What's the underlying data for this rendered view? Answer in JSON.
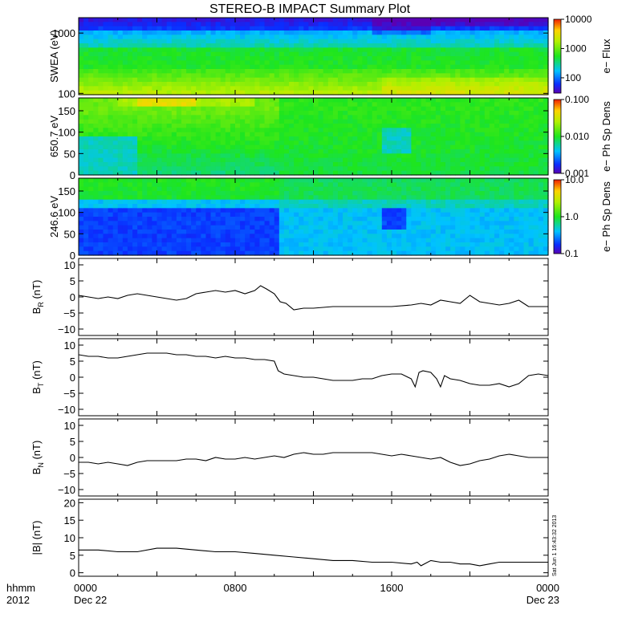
{
  "title": "STEREO-B IMPACT Summary Plot",
  "x_axis": {
    "ticks": [
      {
        "t": 0,
        "line1": "0000",
        "line2": "Dec 22"
      },
      {
        "t": 8,
        "line1": "0800",
        "line2": ""
      },
      {
        "t": 16,
        "line1": "1600",
        "line2": ""
      },
      {
        "t": 24,
        "line1": "0000",
        "line2": "Dec 23"
      }
    ],
    "corner_line1": "hhmm",
    "corner_line2": "2012"
  },
  "timestamp": "Sat Jun 1 16:43:32 2013",
  "colors": {
    "line": "#000000",
    "frame": "#000000"
  },
  "chart_data": [
    {
      "type": "heatmap",
      "id": "swea",
      "ylabel": "SWEA (eV)",
      "ylog": true,
      "ylim": [
        95,
        1800
      ],
      "y_ticks": [
        {
          "v": 100,
          "label": "100"
        },
        {
          "v": 1000,
          "label": "1000"
        }
      ],
      "colorbar": {
        "label": "e− Flux",
        "log": true,
        "range": [
          30,
          10000
        ],
        "ticks": [
          {
            "v": 10000,
            "label": "10000"
          },
          {
            "v": 1000,
            "label": "1000"
          },
          {
            "v": 100,
            "label": "100"
          }
        ]
      }
    },
    {
      "type": "heatmap",
      "id": "pad650",
      "ylabel": "650.7 eV",
      "ylim": [
        0,
        180
      ],
      "y_ticks": [
        {
          "v": 0,
          "label": "0"
        },
        {
          "v": 50,
          "label": "50"
        },
        {
          "v": 100,
          "label": "100"
        },
        {
          "v": 150,
          "label": "150"
        }
      ],
      "colorbar": {
        "label": "e− Ph Sp Dens",
        "log": true,
        "range": [
          0.001,
          0.1
        ],
        "ticks": [
          {
            "v": 0.1,
            "label": "0.100"
          },
          {
            "v": 0.01,
            "label": "0.010"
          },
          {
            "v": 0.001,
            "label": "0.001"
          }
        ]
      }
    },
    {
      "type": "heatmap",
      "id": "pad246",
      "ylabel": "246.6 eV",
      "ylim": [
        0,
        180
      ],
      "y_ticks": [
        {
          "v": 0,
          "label": "0"
        },
        {
          "v": 50,
          "label": "50"
        },
        {
          "v": 100,
          "label": "100"
        },
        {
          "v": 150,
          "label": "150"
        }
      ],
      "colorbar": {
        "label": "e− Ph Sp Dens",
        "log": true,
        "range": [
          0.1,
          10
        ],
        "ticks": [
          {
            "v": 10,
            "label": "10.0"
          },
          {
            "v": 1,
            "label": "1.0"
          },
          {
            "v": 0.1,
            "label": "0.1"
          }
        ]
      }
    },
    {
      "type": "line",
      "id": "br",
      "ylabel_main": "B",
      "ylabel_sub": "R",
      "ylabel_unit": "(nT)",
      "ylim": [
        -12,
        12
      ],
      "y_ticks": [
        {
          "v": -10,
          "label": "−10"
        },
        {
          "v": -5,
          "label": "−5"
        },
        {
          "v": 0,
          "label": "0"
        },
        {
          "v": 5,
          "label": "5"
        },
        {
          "v": 10,
          "label": "10"
        }
      ],
      "x": [
        0,
        0.5,
        1,
        1.5,
        2,
        2.5,
        3,
        3.5,
        4,
        4.5,
        5,
        5.5,
        6,
        6.5,
        7,
        7.5,
        8,
        8.5,
        9,
        9.3,
        9.6,
        10,
        10.3,
        10.6,
        11,
        11.5,
        12,
        13,
        14,
        15,
        16,
        17,
        17.5,
        18,
        18.5,
        19,
        19.5,
        20,
        20.5,
        21,
        21.5,
        22,
        22.5,
        23,
        23.5,
        24
      ],
      "y": [
        0.5,
        0,
        -0.5,
        0,
        -0.5,
        0.5,
        1,
        0.5,
        0,
        -0.5,
        -1,
        -0.5,
        1,
        1.5,
        2,
        1.5,
        2,
        1,
        2,
        3.5,
        2.5,
        1,
        -1.5,
        -2,
        -4,
        -3.5,
        -3.5,
        -3,
        -3,
        -3,
        -3,
        -2.5,
        -2,
        -2.5,
        -1,
        -1.5,
        -2,
        0.5,
        -1.5,
        -2,
        -2.5,
        -2,
        -1,
        -3,
        -3,
        -3
      ]
    },
    {
      "type": "line",
      "id": "bt",
      "ylabel_main": "B",
      "ylabel_sub": "T",
      "ylabel_unit": "(nT)",
      "ylim": [
        -12,
        12
      ],
      "y_ticks": [
        {
          "v": -10,
          "label": "−10"
        },
        {
          "v": -5,
          "label": "−5"
        },
        {
          "v": 0,
          "label": "0"
        },
        {
          "v": 5,
          "label": "5"
        },
        {
          "v": 10,
          "label": "10"
        }
      ],
      "x": [
        0,
        0.5,
        1,
        1.5,
        2,
        2.5,
        3,
        3.5,
        4,
        4.5,
        5,
        5.5,
        6,
        6.5,
        7,
        7.5,
        8,
        8.5,
        9,
        9.5,
        10,
        10.2,
        10.5,
        11,
        11.5,
        12,
        12.5,
        13,
        13.5,
        14,
        14.5,
        15,
        15.5,
        16,
        16.5,
        17,
        17.2,
        17.4,
        17.6,
        18,
        18.3,
        18.5,
        18.7,
        19,
        19.5,
        20,
        20.5,
        21,
        21.5,
        22,
        22.5,
        23,
        23.5,
        24
      ],
      "y": [
        7,
        6.5,
        6.5,
        6,
        6,
        6.5,
        7,
        7.5,
        7.5,
        7.5,
        7,
        7,
        6.5,
        6.5,
        6,
        6.5,
        6,
        6,
        5.5,
        5.5,
        5,
        2,
        1,
        0.5,
        0,
        0,
        -0.5,
        -1,
        -1,
        -1,
        -0.5,
        -0.5,
        0.5,
        1,
        1,
        -0.5,
        -3,
        1.5,
        2,
        1.5,
        -0.5,
        -3,
        0.5,
        -0.5,
        -1,
        -2,
        -2.5,
        -2.5,
        -2,
        -3,
        -2,
        0.5,
        1,
        0.5
      ]
    },
    {
      "type": "line",
      "id": "bn",
      "ylabel_main": "B",
      "ylabel_sub": "N",
      "ylabel_unit": "(nT)",
      "ylim": [
        -12,
        12
      ],
      "y_ticks": [
        {
          "v": -10,
          "label": "−10"
        },
        {
          "v": -5,
          "label": "−5"
        },
        {
          "v": 0,
          "label": "0"
        },
        {
          "v": 5,
          "label": "5"
        },
        {
          "v": 10,
          "label": "10"
        }
      ],
      "x": [
        0,
        0.5,
        1,
        1.5,
        2,
        2.5,
        3,
        3.5,
        4,
        4.5,
        5,
        5.5,
        6,
        6.5,
        7,
        7.5,
        8,
        8.5,
        9,
        9.5,
        10,
        10.5,
        11,
        11.5,
        12,
        12.5,
        13,
        13.5,
        14,
        14.5,
        15,
        15.5,
        16,
        16.5,
        17,
        17.5,
        18,
        18.5,
        19,
        19.5,
        20,
        20.5,
        21,
        21.5,
        22,
        22.5,
        23,
        23.5,
        24
      ],
      "y": [
        -1.5,
        -1.5,
        -2,
        -1.5,
        -2,
        -2.5,
        -1.5,
        -1,
        -1,
        -1,
        -1,
        -0.5,
        -0.5,
        -1,
        0,
        -0.5,
        -0.5,
        0,
        -0.5,
        0,
        0.5,
        0,
        1,
        1.5,
        1,
        1,
        1.5,
        1.5,
        1.5,
        1.5,
        1.5,
        1,
        0.5,
        1,
        0.5,
        0,
        -0.5,
        0,
        -1.5,
        -2.5,
        -2,
        -1,
        -0.5,
        0.5,
        1,
        0.5,
        0,
        0,
        0
      ]
    },
    {
      "type": "line",
      "id": "bmag",
      "ylabel_main": "|B|",
      "ylabel_sub": "",
      "ylabel_unit": "(nT)",
      "ylim": [
        -1,
        21
      ],
      "y_ticks": [
        {
          "v": 0,
          "label": "0"
        },
        {
          "v": 5,
          "label": "5"
        },
        {
          "v": 10,
          "label": "10"
        },
        {
          "v": 15,
          "label": "15"
        },
        {
          "v": 20,
          "label": "20"
        }
      ],
      "x": [
        0,
        1,
        2,
        3,
        4,
        4.5,
        5,
        6,
        7,
        8,
        9,
        10,
        11,
        12,
        13,
        14,
        15,
        16,
        17,
        17.3,
        17.5,
        18,
        18.5,
        19,
        19.5,
        20,
        20.5,
        21,
        21.5,
        22,
        22.5,
        23,
        24
      ],
      "y": [
        6.5,
        6.5,
        6,
        6,
        7,
        7,
        7,
        6.5,
        6,
        6,
        5.5,
        5,
        4.5,
        4,
        3.5,
        3.5,
        3,
        3,
        2.5,
        3,
        2,
        3.5,
        3,
        3,
        2.5,
        2.5,
        2,
        2.5,
        3,
        3,
        3,
        3,
        3
      ]
    }
  ]
}
